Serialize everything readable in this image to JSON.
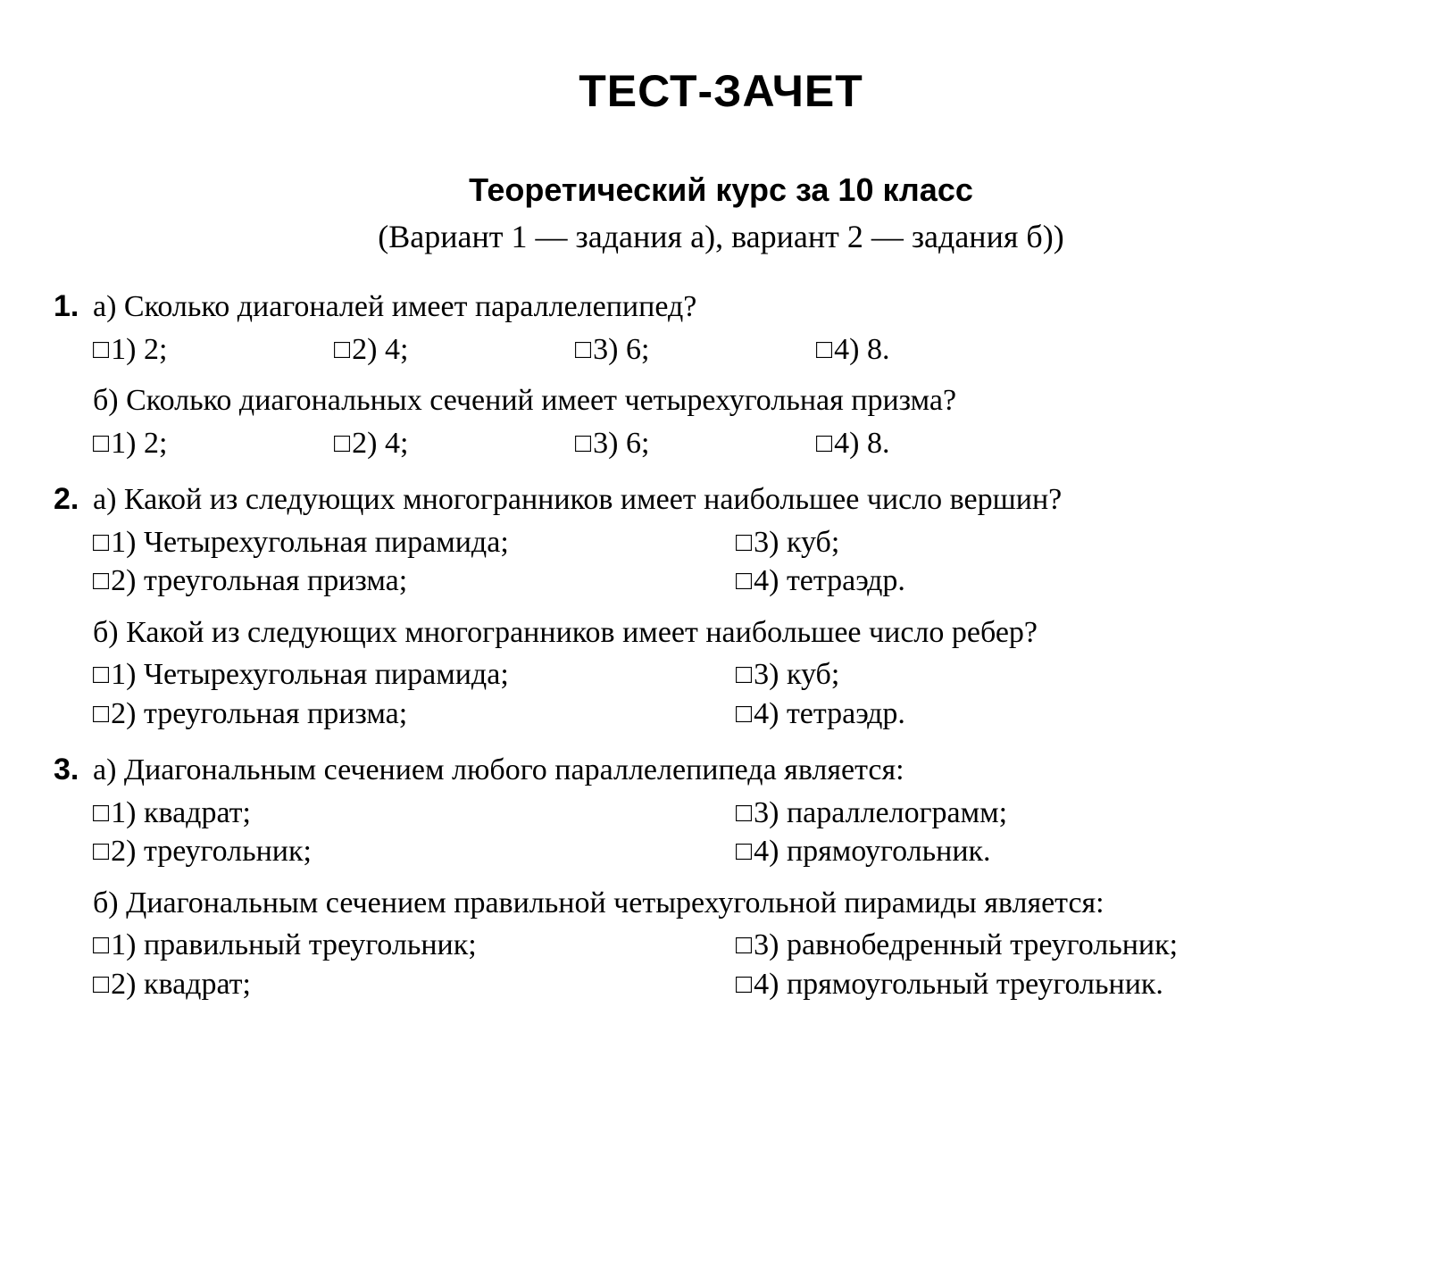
{
  "title": "ТЕСТ-ЗАЧЕТ",
  "subtitle": "Теоретический курс за 10 класс",
  "variant_line": "(Вариант 1 — задания а), вариант 2 — задания б))",
  "checkbox_glyph": "□",
  "q1": {
    "num": "1.",
    "a": {
      "text": "а) Сколько диагоналей имеет параллелепипед?",
      "opts": [
        "1) 2;",
        "2) 4;",
        "3) 6;",
        "4) 8."
      ]
    },
    "b": {
      "text": "б) Сколько диагональных сечений имеет четырехугольная призма?",
      "opts": [
        "1) 2;",
        "2) 4;",
        "3) 6;",
        "4) 8."
      ]
    }
  },
  "q2": {
    "num": "2.",
    "a": {
      "text": "а) Какой из следующих многогранников имеет наибольшее число вершин?",
      "opts": [
        "1) Четырехугольная пирамида;",
        "2) треугольная призма;",
        "3) куб;",
        "4) тетраэдр."
      ]
    },
    "b": {
      "text": "б) Какой из следующих многогранников имеет наибольшее число ребер?",
      "opts": [
        "1) Четырехугольная пирамида;",
        "2) треугольная призма;",
        "3) куб;",
        "4) тетраэдр."
      ]
    }
  },
  "q3": {
    "num": "3.",
    "a": {
      "text": "а) Диагональным сечением любого параллелепипеда является:",
      "opts": [
        "1) квадрат;",
        "2) треугольник;",
        "3) параллелограмм;",
        "4) прямоугольник."
      ]
    },
    "b": {
      "text": "б) Диагональным сечением правильной четырехугольной пирамиды является:",
      "opts": [
        "1) правильный треугольник;",
        "2) квадрат;",
        "3) равнобедренный треугольник;",
        "4) прямоугольный треугольник."
      ]
    }
  }
}
